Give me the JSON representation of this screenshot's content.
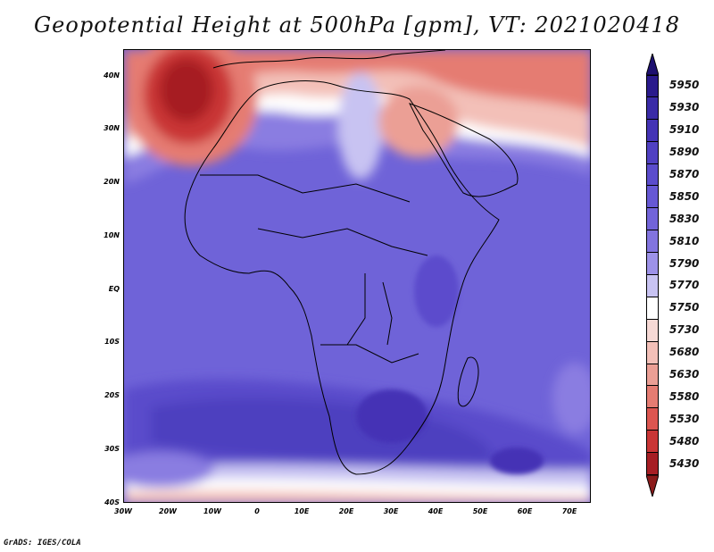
{
  "title": "Geopotential Height at 500hPa [gpm], VT: 2021020418",
  "map": {
    "lon_range": [
      -30,
      75
    ],
    "lat_range": [
      -40,
      45
    ],
    "y_ticks": [
      "40N",
      "30N",
      "20N",
      "10N",
      "EQ",
      "10S",
      "20S",
      "30S",
      "40S"
    ],
    "x_ticks": [
      "30W",
      "20W",
      "10W",
      "0",
      "10E",
      "20E",
      "30E",
      "40E",
      "50E",
      "60E",
      "70E"
    ]
  },
  "colorbar": {
    "levels": [
      "5950",
      "5930",
      "5910",
      "5890",
      "5870",
      "5850",
      "5830",
      "5810",
      "5790",
      "5770",
      "5750",
      "5730",
      "5680",
      "5630",
      "5580",
      "5530",
      "5480",
      "5430"
    ],
    "colors": [
      "#2a1a8c",
      "#3a2ba7",
      "#4433b5",
      "#5040c2",
      "#5b4ccc",
      "#6658d4",
      "#7264d9",
      "#8274df",
      "#9d92e8",
      "#c8c3f2",
      "#ffffff",
      "#f6d9d5",
      "#f3c0b8",
      "#eb9f95",
      "#e57c72",
      "#dc5650",
      "#c93636",
      "#a61e24"
    ],
    "over_color": "#1e1070",
    "under_color": "#8b1a1a"
  },
  "credit": "GrADS: IGES/COLA"
}
